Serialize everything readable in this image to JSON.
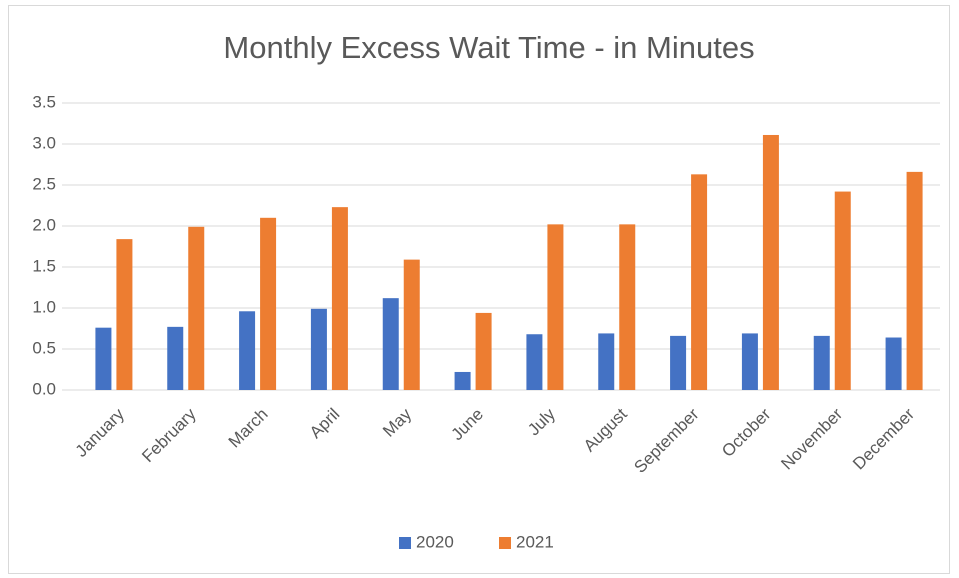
{
  "chart_data": {
    "type": "bar",
    "title": "Monthly Excess Wait Time - in Minutes",
    "categories": [
      "January",
      "February",
      "March",
      "April",
      "May",
      "June",
      "July",
      "August",
      "September",
      "October",
      "November",
      "December"
    ],
    "series": [
      {
        "name": "2020",
        "color": "#4472c4",
        "values": [
          0.76,
          0.77,
          0.96,
          0.99,
          1.12,
          0.22,
          0.68,
          0.69,
          0.66,
          0.69,
          0.66,
          0.64
        ]
      },
      {
        "name": "2021",
        "color": "#ed7d31",
        "values": [
          1.84,
          1.99,
          2.1,
          2.23,
          1.59,
          0.94,
          2.02,
          2.02,
          2.63,
          3.11,
          2.42,
          2.66
        ]
      }
    ],
    "ylim": [
      0,
      3.5
    ],
    "yticks": [
      {
        "value": 0,
        "label": "0.0"
      },
      0.5,
      {
        "value": 1,
        "label": "1.0"
      },
      1.5,
      {
        "value": 2,
        "label": "2.0"
      },
      2.5,
      {
        "value": 3,
        "label": "3.0"
      },
      3.5
    ],
    "grid": true,
    "legend": "bottom"
  }
}
